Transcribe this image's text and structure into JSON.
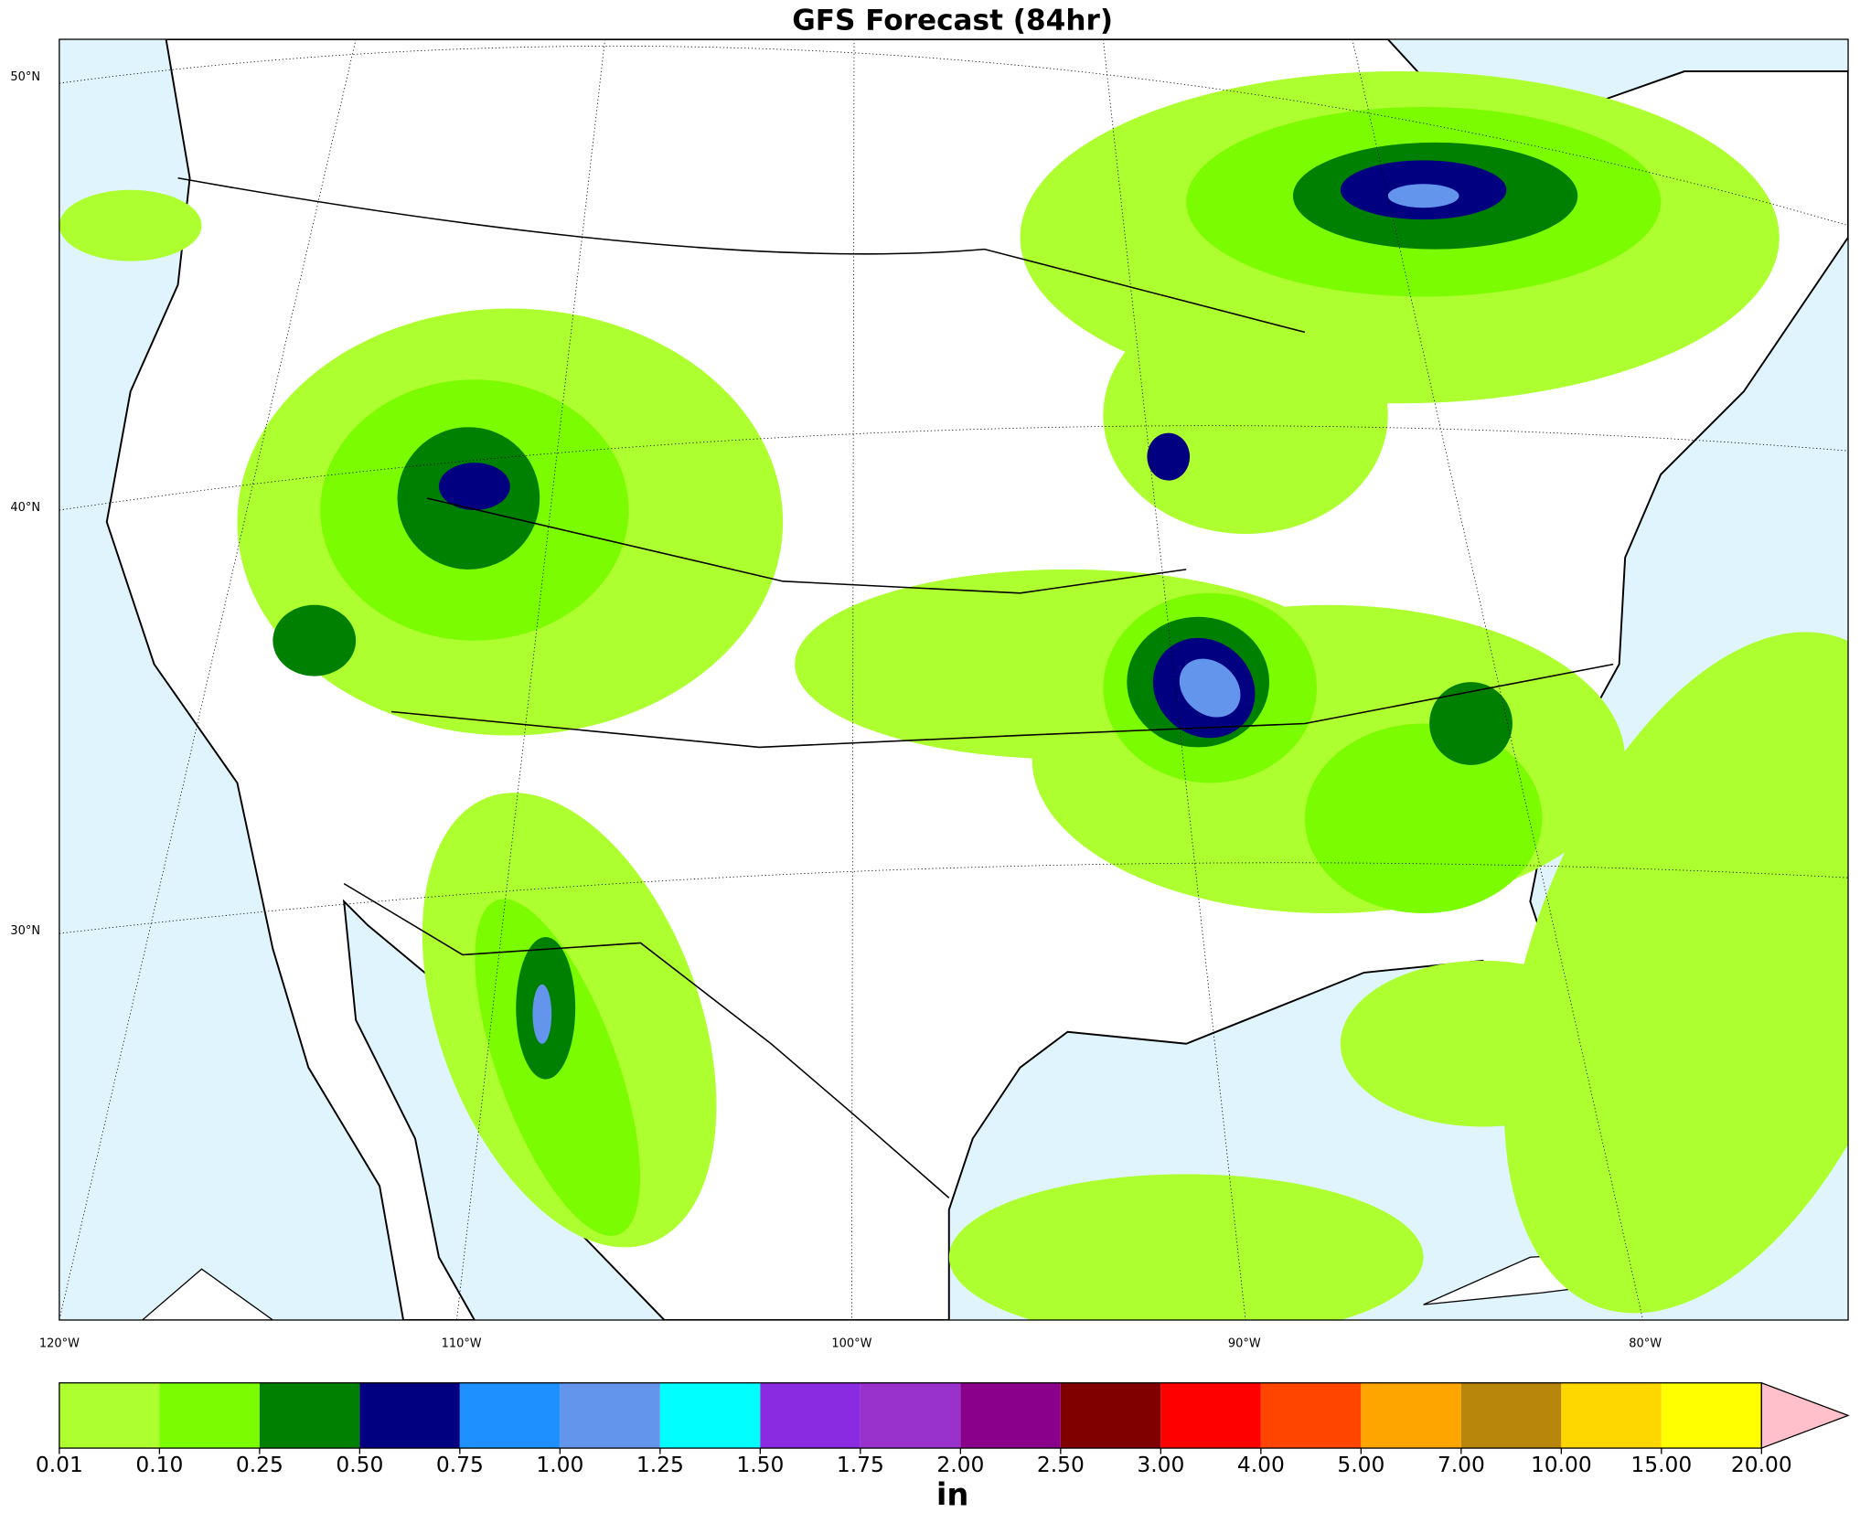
{
  "title": "GFS Forecast (84hr)",
  "map": {
    "lat_labels": [
      "50°N",
      "40°N",
      "30°N"
    ],
    "lon_labels": [
      "120°W",
      "110°W",
      "100°W",
      "90°W",
      "80°W"
    ]
  },
  "colorbar": {
    "label": "in",
    "colors": [
      "#adff2f",
      "#7cfc00",
      "#008000",
      "#000080",
      "#1e90ff",
      "#6495ed",
      "#00ffff",
      "#8a2be2",
      "#9932cc",
      "#8b008b",
      "#800000",
      "#ff0000",
      "#ff4500",
      "#ffa500",
      "#b8860b",
      "#ffd700",
      "#ffff00"
    ],
    "extend_color": "#ffc0cb",
    "ticks": [
      {
        "value": 0.01,
        "label": "0.01"
      },
      {
        "value": 0.1,
        "label": "0.10"
      },
      {
        "value": 0.25,
        "label": "0.25"
      },
      {
        "value": 0.5,
        "label": "0.50"
      },
      {
        "value": 0.75,
        "label": "0.75"
      },
      {
        "value": 1,
        "label": "1.00"
      },
      {
        "value": 1.25,
        "label": "1.25"
      },
      {
        "value": 1.5,
        "label": "1.50"
      },
      {
        "value": 1.75,
        "label": "1.75"
      },
      {
        "value": 2,
        "label": "2.00"
      },
      {
        "value": 2.5,
        "label": "2.50"
      },
      {
        "value": 3,
        "label": "3.00"
      },
      {
        "value": 4,
        "label": "4.00"
      },
      {
        "value": 5,
        "label": "5.00"
      },
      {
        "value": 7,
        "label": "7.00"
      },
      {
        "value": 10,
        "label": "10.00"
      },
      {
        "value": 15,
        "label": "15.00"
      },
      {
        "value": 20,
        "label": "20.00"
      }
    ]
  }
}
